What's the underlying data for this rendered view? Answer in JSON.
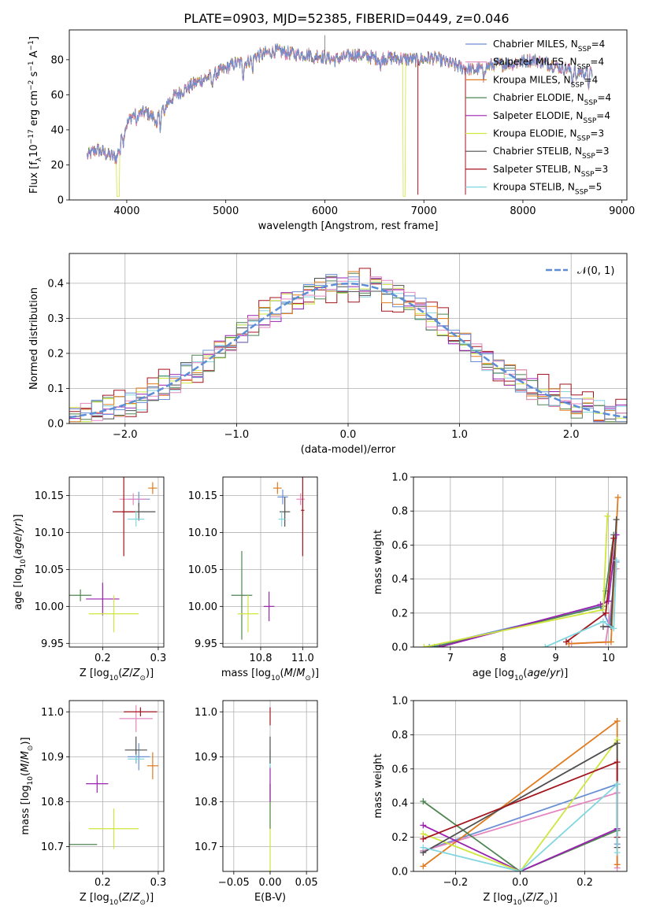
{
  "title": "PLATE=0903, MJD=52385, FIBERID=0449, z=0.046",
  "colors": {
    "Chabrier MILES": "#6a8fd4",
    "Salpeter MILES": "#e487c0",
    "Kroupa MILES": "#e07b1f",
    "Chabrier ELODIE": "#4f8552",
    "Salpeter ELODIE": "#9b22b0",
    "Kroupa ELODIE": "#cfe63c",
    "Chabrier STELIB": "#4f4f4f",
    "Salpeter STELIB": "#a3141c",
    "Kroupa STELIB": "#82d6e0",
    "normal": "#5b8ed6"
  },
  "legend_spectrum": [
    {
      "key": "Chabrier MILES",
      "label": "Chabrier MILES, N",
      "sub": "SSP",
      "eq": "=4"
    },
    {
      "key": "Salpeter MILES",
      "label": "Salpeter MILES, N",
      "sub": "SSP",
      "eq": "=4"
    },
    {
      "key": "Kroupa MILES",
      "label": "Kroupa MILES, N",
      "sub": "SSP",
      "eq": "=4"
    },
    {
      "key": "Chabrier ELODIE",
      "label": "Chabrier ELODIE, N",
      "sub": "SSP",
      "eq": "=4"
    },
    {
      "key": "Salpeter ELODIE",
      "label": "Salpeter ELODIE, N",
      "sub": "SSP",
      "eq": "=4"
    },
    {
      "key": "Kroupa ELODIE",
      "label": "Kroupa ELODIE, N",
      "sub": "SSP",
      "eq": "=3"
    },
    {
      "key": "Chabrier STELIB",
      "label": "Chabrier STELIB, N",
      "sub": "SSP",
      "eq": "=3"
    },
    {
      "key": "Salpeter STELIB",
      "label": "Salpeter STELIB, N",
      "sub": "SSP",
      "eq": "=3"
    },
    {
      "key": "Kroupa STELIB",
      "label": "Kroupa STELIB, N",
      "sub": "SSP",
      "eq": "=5"
    }
  ],
  "chart_data": [
    {
      "id": "spectrum",
      "type": "line",
      "xlabel": "wavelength [Angstrom, rest frame]",
      "ylabel": "Flux [f_λ 10^-17 erg cm^-2 s^-1 A^-1]",
      "xlim": [
        3420,
        9050
      ],
      "ylim": [
        0,
        97
      ],
      "xticks": [
        4000,
        5000,
        6000,
        7000,
        8000,
        9000
      ],
      "yticks": [
        0,
        20,
        40,
        60,
        80
      ],
      "grid": false,
      "legend": "right",
      "wavelength_range": [
        3600,
        8700
      ],
      "continuum": [
        [
          3600,
          25
        ],
        [
          3700,
          29
        ],
        [
          3800,
          26
        ],
        [
          3900,
          24
        ],
        [
          3950,
          38
        ],
        [
          4050,
          48
        ],
        [
          4200,
          50
        ],
        [
          4300,
          46
        ],
        [
          4400,
          55
        ],
        [
          4500,
          60
        ],
        [
          4700,
          67
        ],
        [
          4900,
          72
        ],
        [
          5100,
          78
        ],
        [
          5200,
          78
        ],
        [
          5300,
          82
        ],
        [
          5500,
          85
        ],
        [
          5700,
          83
        ],
        [
          5900,
          83
        ],
        [
          6100,
          80
        ],
        [
          6300,
          83
        ],
        [
          6500,
          81
        ],
        [
          6700,
          81
        ],
        [
          6900,
          80
        ],
        [
          7100,
          81
        ],
        [
          7300,
          77
        ],
        [
          7500,
          74
        ],
        [
          7700,
          77
        ],
        [
          7900,
          78
        ],
        [
          8100,
          80
        ],
        [
          8300,
          77
        ],
        [
          8500,
          74
        ],
        [
          8700,
          72
        ]
      ],
      "spikes": [
        [
          6000,
          94
        ],
        [
          6945,
          80
        ],
        [
          6940,
          3
        ],
        [
          7420,
          3
        ]
      ]
    },
    {
      "id": "residuals",
      "type": "step",
      "xlabel": "(data-model)/error",
      "ylabel": "Normed distribution",
      "xlim": [
        -2.5,
        2.5
      ],
      "ylim": [
        0,
        0.485
      ],
      "xticks": [
        -2,
        -1,
        0,
        1,
        2
      ],
      "yticks": [
        0,
        0.1,
        0.2,
        0.3,
        0.4
      ],
      "grid": true,
      "legend": "top-right",
      "normal_label": "𝒩(0, 1)",
      "bins": 50,
      "bin_min": -2.5,
      "bin_max": 2.5
    },
    {
      "id": "age_vs_Z",
      "type": "errorbar",
      "xlabel": "Z [log10(Z/Z⊙)]",
      "ylabel": "age  [log10(age/yr)]",
      "xlim": [
        0.14,
        0.31
      ],
      "ylim": [
        9.945,
        10.175
      ],
      "xticks": [
        0.2,
        0.3
      ],
      "yticks": [
        9.95,
        10.0,
        10.05,
        10.1,
        10.15
      ],
      "grid": true,
      "points": [
        {
          "key": "Chabrier MILES",
          "x": 0.265,
          "y": 10.145,
          "xe": 0.02,
          "ye": 0.01
        },
        {
          "key": "Salpeter MILES",
          "x": 0.255,
          "y": 10.145,
          "xe": 0.025,
          "ye": 0.008
        },
        {
          "key": "Kroupa MILES",
          "x": 0.29,
          "y": 10.16,
          "xe": 0.008,
          "ye": 0.008
        },
        {
          "key": "Chabrier ELODIE",
          "x": 0.16,
          "y": 10.015,
          "xe": 0.02,
          "ye": 0.008
        },
        {
          "key": "Salpeter ELODIE",
          "x": 0.2,
          "y": 10.01,
          "xe": 0.03,
          "ye": 0.022
        },
        {
          "key": "Kroupa ELODIE",
          "x": 0.22,
          "y": 9.99,
          "xe": 0.045,
          "ye": 0.025
        },
        {
          "key": "Chabrier STELIB",
          "x": 0.265,
          "y": 10.128,
          "xe": 0.03,
          "ye": 0.012
        },
        {
          "key": "Salpeter STELIB",
          "x": 0.238,
          "y": 10.128,
          "xe": 0.02,
          "ye": 0.06
        },
        {
          "key": "Kroupa STELIB",
          "x": 0.26,
          "y": 10.118,
          "xe": 0.015,
          "ye": 0.01
        }
      ]
    },
    {
      "id": "age_vs_mass",
      "type": "errorbar",
      "xlabel": "mass [log10(M/M⊙)]",
      "ylabel": "",
      "xlim": [
        10.62,
        11.07
      ],
      "ylim": [
        9.945,
        10.175
      ],
      "xticks": [
        10.8,
        11.0
      ],
      "yticks": [
        9.95,
        10.0,
        10.05,
        10.1,
        10.15
      ],
      "grid": true,
      "points": [
        {
          "key": "Chabrier MILES",
          "x": 10.905,
          "y": 10.148,
          "xe": 0.025,
          "ye": 0.01
        },
        {
          "key": "Salpeter MILES",
          "x": 10.99,
          "y": 10.145,
          "xe": 0.02,
          "ye": 0.008
        },
        {
          "key": "Kroupa MILES",
          "x": 10.88,
          "y": 10.16,
          "xe": 0.02,
          "ye": 0.008
        },
        {
          "key": "Chabrier ELODIE",
          "x": 10.71,
          "y": 10.015,
          "xe": 0.05,
          "ye": 0.06
        },
        {
          "key": "Salpeter ELODIE",
          "x": 10.84,
          "y": 10.0,
          "xe": 0.025,
          "ye": 0.02
        },
        {
          "key": "Kroupa ELODIE",
          "x": 10.74,
          "y": 9.99,
          "xe": 0.05,
          "ye": 0.025
        },
        {
          "key": "Chabrier STELIB",
          "x": 10.915,
          "y": 10.128,
          "xe": 0.025,
          "ye": 0.02
        },
        {
          "key": "Salpeter STELIB",
          "x": 11.0,
          "y": 10.13,
          "xe": 0.008,
          "ye": 0.062
        },
        {
          "key": "Kroupa STELIB",
          "x": 10.9,
          "y": 10.118,
          "xe": 0.015,
          "ye": 0.01
        }
      ]
    },
    {
      "id": "weight_vs_age",
      "type": "line",
      "xlabel": "age  [log10(age/yr)]",
      "ylabel": "mass weight",
      "xlim": [
        6.3,
        10.35
      ],
      "ylim": [
        0,
        1
      ],
      "xticks": [
        7,
        8,
        9,
        10
      ],
      "yticks": [
        0,
        0.2,
        0.4,
        0.6,
        0.8,
        1.0
      ],
      "grid": true,
      "series": [
        {
          "key": "Chabrier MILES",
          "pts": [
            [
              6.6,
              0.0
            ],
            [
              9.85,
              0.24
            ],
            [
              10.02,
              0.13
            ],
            [
              10.15,
              0.5
            ]
          ]
        },
        {
          "key": "Salpeter MILES",
          "pts": [
            [
              9.3,
              0.02
            ],
            [
              9.95,
              0.03
            ],
            [
              10.15,
              0.46
            ]
          ]
        },
        {
          "key": "Kroupa MILES",
          "pts": [
            [
              9.25,
              0.02
            ],
            [
              10.05,
              0.03
            ],
            [
              10.18,
              0.88
            ]
          ]
        },
        {
          "key": "Chabrier ELODIE",
          "pts": [
            [
              6.7,
              0.0
            ],
            [
              9.9,
              0.24
            ],
            [
              9.95,
              0.33
            ],
            [
              10.1,
              0.66
            ]
          ]
        },
        {
          "key": "Salpeter ELODIE",
          "pts": [
            [
              6.8,
              0.0
            ],
            [
              9.85,
              0.25
            ],
            [
              10.0,
              0.27
            ],
            [
              10.15,
              0.66
            ]
          ]
        },
        {
          "key": "Kroupa ELODIE",
          "pts": [
            [
              6.5,
              0.0
            ],
            [
              9.9,
              0.22
            ],
            [
              9.98,
              0.77
            ]
          ]
        },
        {
          "key": "Chabrier STELIB",
          "pts": [
            [
              9.9,
              0.12
            ],
            [
              10.05,
              0.12
            ],
            [
              10.15,
              0.75
            ]
          ]
        },
        {
          "key": "Salpeter STELIB",
          "pts": [
            [
              9.2,
              0.03
            ],
            [
              9.95,
              0.2
            ],
            [
              10.1,
              0.64
            ]
          ]
        },
        {
          "key": "Kroupa STELIB",
          "pts": [
            [
              8.8,
              0.0
            ],
            [
              9.9,
              0.15
            ],
            [
              10.1,
              0.11
            ],
            [
              10.15,
              0.51
            ]
          ]
        }
      ]
    },
    {
      "id": "mass_vs_Z",
      "type": "errorbar",
      "xlabel": "Z [log10(Z/Z⊙)]",
      "ylabel": "mass [log10(M/M⊙)]",
      "xlim": [
        0.14,
        0.31
      ],
      "ylim": [
        10.645,
        11.025
      ],
      "xticks": [
        0.2,
        0.3
      ],
      "yticks": [
        10.7,
        10.8,
        10.9,
        11.0
      ],
      "grid": true,
      "points": [
        {
          "key": "Chabrier MILES",
          "x": 0.265,
          "y": 10.9,
          "xe": 0.02,
          "ye": 0.03
        },
        {
          "key": "Salpeter MILES",
          "x": 0.26,
          "y": 10.985,
          "xe": 0.03,
          "ye": 0.03
        },
        {
          "key": "Kroupa MILES",
          "x": 0.29,
          "y": 10.88,
          "xe": 0.01,
          "ye": 0.03
        },
        {
          "key": "Chabrier ELODIE",
          "x": 0.14,
          "y": 10.705,
          "xe": 0.05,
          "ye": 0.05
        },
        {
          "key": "Salpeter ELODIE",
          "x": 0.19,
          "y": 10.84,
          "xe": 0.02,
          "ye": 0.02
        },
        {
          "key": "Kroupa ELODIE",
          "x": 0.22,
          "y": 10.74,
          "xe": 0.045,
          "ye": 0.045
        },
        {
          "key": "Chabrier STELIB",
          "x": 0.26,
          "y": 10.915,
          "xe": 0.02,
          "ye": 0.03
        },
        {
          "key": "Salpeter STELIB",
          "x": 0.268,
          "y": 11.0,
          "xe": 0.03,
          "ye": 0.01
        },
        {
          "key": "Kroupa STELIB",
          "x": 0.26,
          "y": 10.895,
          "xe": 0.015,
          "ye": 0.01
        }
      ]
    },
    {
      "id": "mass_vs_EBV",
      "type": "errorbar",
      "xlabel": "E(B-V)",
      "ylabel": "",
      "xlim": [
        -0.065,
        0.065
      ],
      "ylim": [
        10.645,
        11.025
      ],
      "xticks": [
        -0.05,
        0.0,
        0.05
      ],
      "yticks": [
        10.7,
        10.8,
        10.9,
        11.0
      ],
      "grid": true,
      "points": [
        {
          "key": "Kroupa ELODIE",
          "x": 0.0,
          "y": 10.74,
          "xe": 0.0,
          "ye": 0.1
        },
        {
          "key": "Chabrier ELODIE",
          "x": 0.0,
          "y": 10.79,
          "xe": 0.0,
          "ye": 0.05
        },
        {
          "key": "Salpeter ELODIE",
          "x": 0.0,
          "y": 10.84,
          "xe": 0.0,
          "ye": 0.04
        },
        {
          "key": "Kroupa STELIB",
          "x": 0.0,
          "y": 10.895,
          "xe": 0.0,
          "ye": 0.02
        },
        {
          "key": "Chabrier STELIB",
          "x": 0.0,
          "y": 10.915,
          "xe": 0.0,
          "ye": 0.03
        },
        {
          "key": "Salpeter STELIB",
          "x": 0.0,
          "y": 10.99,
          "xe": 0.0,
          "ye": 0.02
        }
      ]
    },
    {
      "id": "weight_vs_Z",
      "type": "line",
      "xlabel": "Z [log10(Z/Z⊙)]",
      "ylabel": "mass weight",
      "xlim": [
        -0.33,
        0.33
      ],
      "ylim": [
        0,
        1
      ],
      "xticks": [
        -0.2,
        0.0,
        0.2
      ],
      "yticks": [
        0,
        0.2,
        0.4,
        0.6,
        0.8,
        1.0
      ],
      "grid": true,
      "series": [
        {
          "key": "Chabrier MILES",
          "pts": [
            [
              -0.3,
              0.12
            ],
            [
              0.3,
              0.51
            ],
            [
              0.3,
              0.16
            ]
          ]
        },
        {
          "key": "Salpeter MILES",
          "pts": [
            [
              -0.3,
              0.12
            ],
            [
              0.3,
              0.46
            ],
            [
              0.3,
              0.02
            ]
          ]
        },
        {
          "key": "Kroupa MILES",
          "pts": [
            [
              -0.3,
              0.03
            ],
            [
              0.3,
              0.88
            ],
            [
              0.3,
              0.04
            ]
          ]
        },
        {
          "key": "Chabrier ELODIE",
          "pts": [
            [
              -0.3,
              0.41
            ],
            [
              0.0,
              0.0
            ],
            [
              0.3,
              0.24
            ]
          ]
        },
        {
          "key": "Salpeter ELODIE",
          "pts": [
            [
              -0.3,
              0.27
            ],
            [
              0.0,
              0.0
            ],
            [
              0.3,
              0.25
            ]
          ]
        },
        {
          "key": "Kroupa ELODIE",
          "pts": [
            [
              -0.3,
              0.22
            ],
            [
              0.0,
              0.0
            ],
            [
              0.3,
              0.77
            ]
          ]
        },
        {
          "key": "Chabrier STELIB",
          "pts": [
            [
              -0.3,
              0.11
            ],
            [
              0.3,
              0.75
            ],
            [
              0.3,
              0.14
            ]
          ]
        },
        {
          "key": "Salpeter STELIB",
          "pts": [
            [
              -0.3,
              0.19
            ],
            [
              0.3,
              0.64
            ],
            [
              0.3,
              0.2
            ]
          ]
        },
        {
          "key": "Kroupa STELIB",
          "pts": [
            [
              -0.3,
              0.14
            ],
            [
              0.0,
              0.0
            ],
            [
              0.3,
              0.51
            ],
            [
              0.3,
              0.11
            ]
          ]
        }
      ]
    }
  ]
}
